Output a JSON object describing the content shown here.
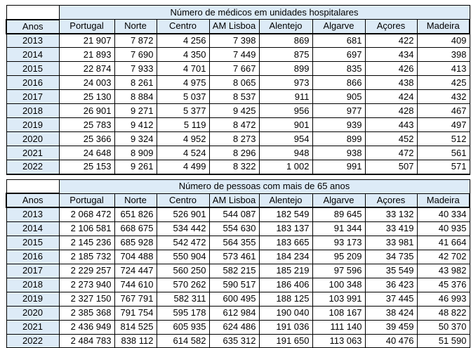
{
  "styles": {
    "header_bg": "#DDEBF7",
    "border_color": "#000000",
    "text_color": "#000000"
  },
  "tables": [
    {
      "title": "Número de médicos em unidades hospitalares",
      "year_header": "Anos",
      "columns": [
        "Portugal",
        "Norte",
        "Centro",
        "AM Lisboa",
        "Alentejo",
        "Algarve",
        "Açores",
        "Madeira"
      ],
      "rows": [
        {
          "year": "2013",
          "values": [
            "21 907",
            "7 872",
            "4 256",
            "7 398",
            "869",
            "681",
            "422",
            "409"
          ]
        },
        {
          "year": "2014",
          "values": [
            "21 893",
            "7 690",
            "4 350",
            "7 449",
            "875",
            "697",
            "434",
            "398"
          ]
        },
        {
          "year": "2015",
          "values": [
            "22 874",
            "7 933",
            "4 701",
            "7 667",
            "899",
            "835",
            "426",
            "413"
          ]
        },
        {
          "year": "2016",
          "values": [
            "24 003",
            "8 261",
            "4 975",
            "8 065",
            "973",
            "866",
            "438",
            "425"
          ]
        },
        {
          "year": "2017",
          "values": [
            "25 130",
            "8 884",
            "5 037",
            "8 537",
            "911",
            "905",
            "424",
            "432"
          ]
        },
        {
          "year": "2018",
          "values": [
            "26 901",
            "9 271",
            "5 377",
            "9 425",
            "956",
            "977",
            "428",
            "467"
          ]
        },
        {
          "year": "2019",
          "values": [
            "25 783",
            "9 412",
            "5 119",
            "8 472",
            "901",
            "939",
            "443",
            "497"
          ]
        },
        {
          "year": "2020",
          "values": [
            "25 366",
            "9 324",
            "4 952",
            "8 273",
            "954",
            "899",
            "452",
            "512"
          ]
        },
        {
          "year": "2021",
          "values": [
            "24 648",
            "8 909",
            "4 524",
            "8 296",
            "948",
            "938",
            "472",
            "561"
          ]
        },
        {
          "year": "2022",
          "values": [
            "25 153",
            "9 261",
            "4 499",
            "8 322",
            "1 002",
            "991",
            "507",
            "571"
          ]
        }
      ]
    },
    {
      "title": "Número de pessoas com mais de 65 anos",
      "year_header": "Anos",
      "columns": [
        "Portugal",
        "Norte",
        "Centro",
        "AM Lisboa",
        "Alentejo",
        "Algarve",
        "Açores",
        "Madeira"
      ],
      "rows": [
        {
          "year": "2013",
          "values": [
            "2 068 472",
            "651 826",
            "526 901",
            "544 087",
            "182 549",
            "89 645",
            "33 132",
            "40 334"
          ]
        },
        {
          "year": "2014",
          "values": [
            "2 106 581",
            "668 675",
            "534 442",
            "554 630",
            "183 137",
            "91 344",
            "33 419",
            "40 935"
          ]
        },
        {
          "year": "2015",
          "values": [
            "2 145 236",
            "685 928",
            "542 472",
            "564 355",
            "183 665",
            "93 173",
            "33 981",
            "41 664"
          ]
        },
        {
          "year": "2016",
          "values": [
            "2 185 732",
            "704 488",
            "550 904",
            "573 461",
            "184 234",
            "95 209",
            "34 735",
            "42 702"
          ]
        },
        {
          "year": "2017",
          "values": [
            "2 229 257",
            "724 447",
            "560 250",
            "582 215",
            "185 219",
            "97 596",
            "35 549",
            "43 982"
          ]
        },
        {
          "year": "2018",
          "values": [
            "2 273 940",
            "744 610",
            "570 262",
            "590 517",
            "186 406",
            "100 348",
            "36 423",
            "45 376"
          ]
        },
        {
          "year": "2019",
          "values": [
            "2 327 150",
            "767 791",
            "582 311",
            "600 495",
            "188 125",
            "103 991",
            "37 445",
            "46 993"
          ]
        },
        {
          "year": "2020",
          "values": [
            "2 385 368",
            "791 754",
            "595 178",
            "612 984",
            "190 040",
            "108 167",
            "38 424",
            "48 822"
          ]
        },
        {
          "year": "2021",
          "values": [
            "2 436 949",
            "814 525",
            "605 935",
            "624 486",
            "191 036",
            "111 140",
            "39 459",
            "50 370"
          ]
        },
        {
          "year": "2022",
          "values": [
            "2 484 783",
            "838 112",
            "614 582",
            "635 312",
            "191 650",
            "113 063",
            "40 476",
            "51 590"
          ]
        }
      ]
    }
  ]
}
